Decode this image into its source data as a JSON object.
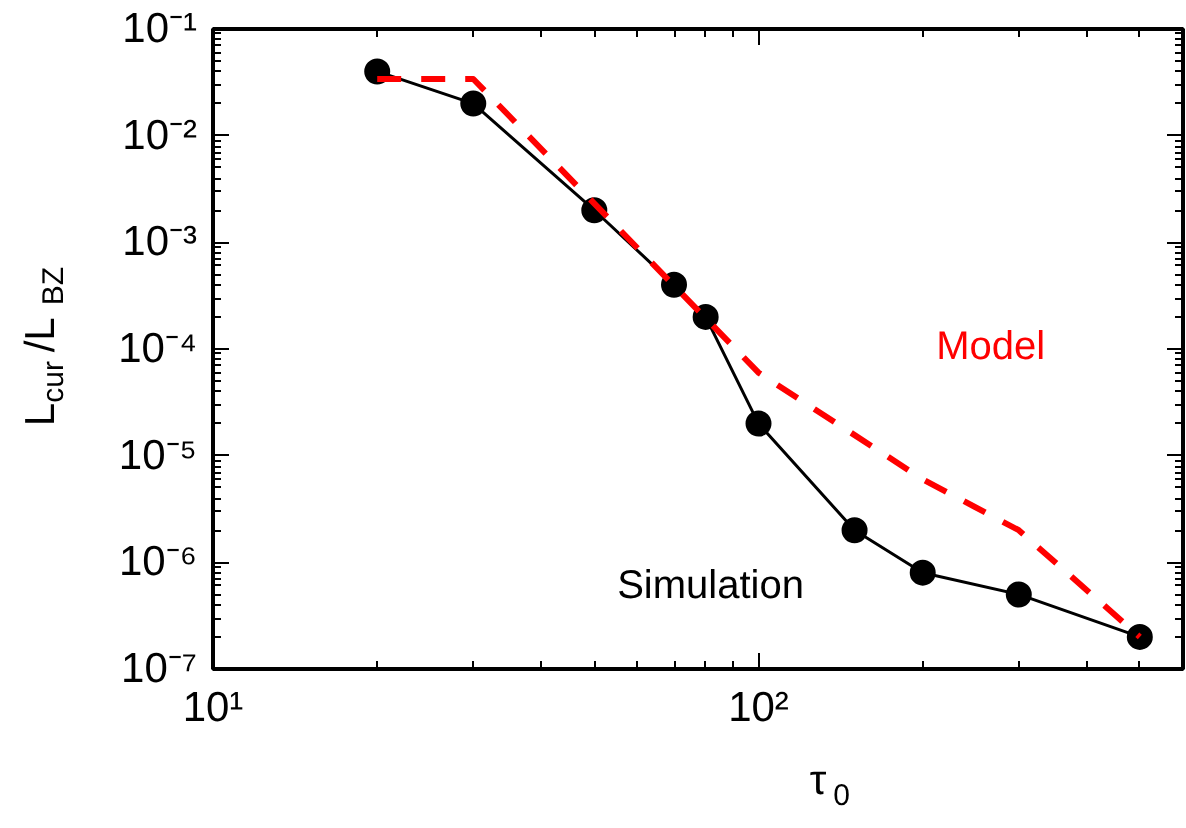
{
  "chart_data": {
    "type": "line",
    "xlabel": "τ$_{0}$",
    "ylabel": "L$_{cur}$/L$_{BZ}$",
    "log": "xy",
    "xlim": [
      10,
      600
    ],
    "ylim": [
      1e-07,
      0.1
    ],
    "xticks": [
      {
        "value": 10,
        "label": "10¹"
      },
      {
        "value": 100,
        "label": "10²"
      }
    ],
    "yticks": [
      {
        "value": 1e-07,
        "label": "10⁻⁷"
      },
      {
        "value": 1e-06,
        "label": "10⁻⁶"
      },
      {
        "value": 1e-05,
        "label": "10⁻⁵"
      },
      {
        "value": 0.0001,
        "label": "10⁻⁴"
      },
      {
        "value": 0.001,
        "label": "10⁻³"
      },
      {
        "value": 0.01,
        "label": "10⁻²"
      },
      {
        "value": 0.1,
        "label": "10⁻¹"
      }
    ],
    "grid": false,
    "series": [
      {
        "name": "Simulation",
        "color": "#000000",
        "marker": "circle",
        "line_style": "solid",
        "x": [
          20,
          30,
          50,
          70,
          80,
          100,
          150,
          200,
          300,
          500
        ],
        "values": [
          0.04,
          0.02,
          0.002,
          0.0004,
          0.0002,
          2e-05,
          2e-06,
          8e-07,
          5e-07,
          2e-07
        ]
      },
      {
        "name": "Model",
        "color": "#ff0000",
        "marker": "none",
        "line_style": "dashed",
        "x": [
          20,
          30,
          100,
          200,
          300,
          500
        ],
        "values": [
          0.034,
          0.034,
          6e-05,
          6e-06,
          2e-06,
          2e-07
        ]
      }
    ]
  }
}
